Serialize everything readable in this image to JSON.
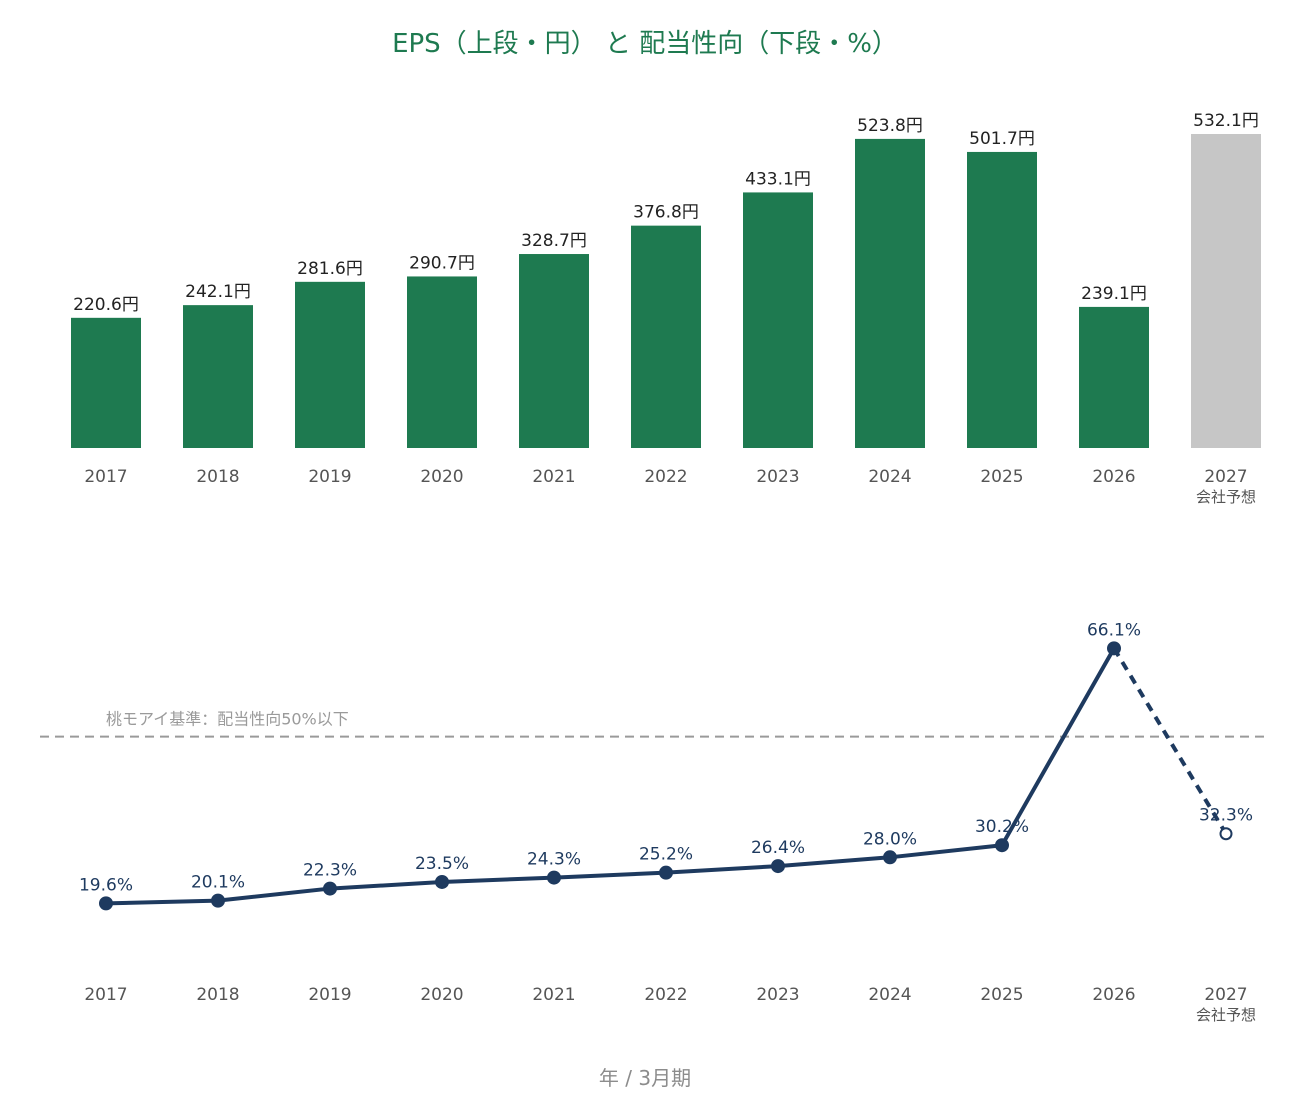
{
  "title": "EPS（上段・円） と 配当性向（下段・%）",
  "footer_label": "年 / 3月期",
  "colors": {
    "title": "#1e7a50",
    "bar": "#1e7a50",
    "forecast_bar": "#c6c6c6",
    "line": "#1e3a5f",
    "threshold": "#9a9a9a"
  },
  "chart_data": [
    {
      "type": "bar",
      "categories": [
        "2017",
        "2018",
        "2019",
        "2020",
        "2021",
        "2022",
        "2023",
        "2024",
        "2025",
        "2026",
        "2027"
      ],
      "category_sublabels": [
        "",
        "",
        "",
        "",
        "",
        "",
        "",
        "",
        "",
        "",
        "会社予想"
      ],
      "values": [
        220.6,
        242.1,
        281.6,
        290.7,
        328.7,
        376.8,
        433.1,
        523.8,
        501.7,
        239.1,
        532.1
      ],
      "value_labels": [
        "220.6円",
        "242.1円",
        "281.6円",
        "290.7円",
        "328.7円",
        "376.8円",
        "433.1円",
        "523.8円",
        "501.7円",
        "239.1円",
        "532.1円"
      ],
      "forecast_index": 10,
      "ylim": [
        0,
        532.1
      ],
      "grid": false
    },
    {
      "type": "line",
      "categories": [
        "2017",
        "2018",
        "2019",
        "2020",
        "2021",
        "2022",
        "2023",
        "2024",
        "2025",
        "2026",
        "2027"
      ],
      "category_sublabels": [
        "",
        "",
        "",
        "",
        "",
        "",
        "",
        "",
        "",
        "",
        "会社予想"
      ],
      "values": [
        19.6,
        20.1,
        22.3,
        23.5,
        24.3,
        25.2,
        26.4,
        28.0,
        30.2,
        66.1,
        32.3
      ],
      "value_labels": [
        "19.6%",
        "20.1%",
        "22.3%",
        "23.5%",
        "24.3%",
        "25.2%",
        "26.4%",
        "28.0%",
        "30.2%",
        "66.1%",
        "32.3%"
      ],
      "forecast_index": 10,
      "threshold": {
        "value": 50,
        "label": "桃モアイ基準：配当性向50%以下",
        "style": "dashed"
      },
      "ylim": [
        8,
        74
      ],
      "grid": false
    }
  ]
}
